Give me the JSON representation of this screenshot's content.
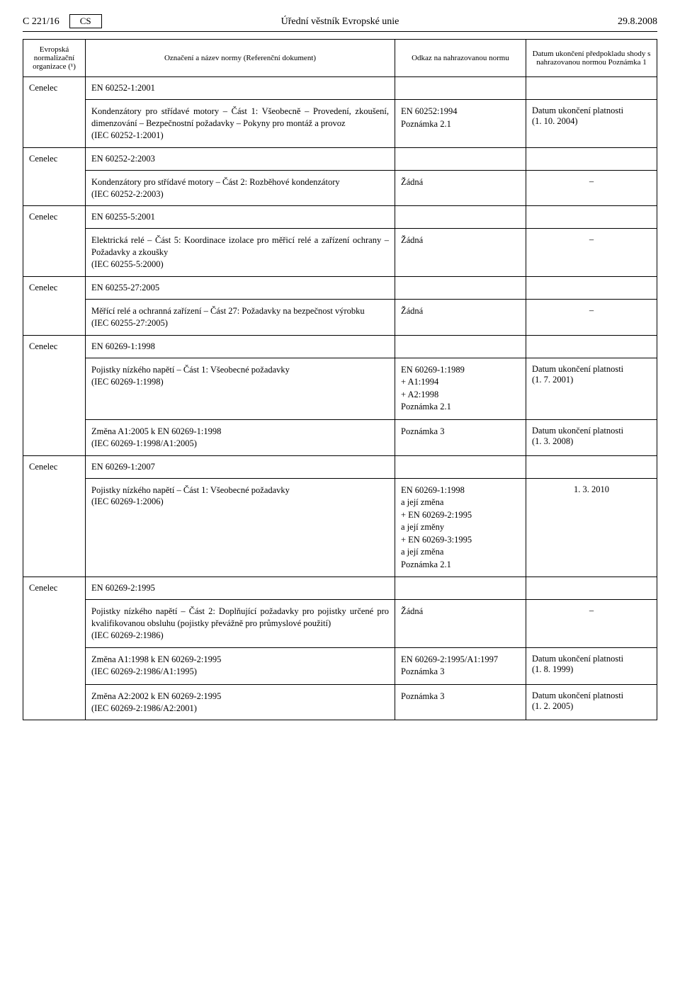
{
  "header": {
    "page_ref": "C 221/16",
    "lang_box": "CS",
    "journal": "Úřední věstník Evropské unie",
    "date": "29.8.2008"
  },
  "columns": {
    "org": "Evropská normalizační organizace (¹)",
    "title": "Označení a název normy\n(Referenční dokument)",
    "ref": "Odkaz na nahrazovanou normu",
    "cess": "Datum ukončení předpokladu shody s nahrazovanou normou\nPoznámka 1"
  },
  "labels": {
    "zadna": "Žádná",
    "platnost": "Datum ukončení platnosti",
    "pozn21": "Poznámka 2.1",
    "pozn3": "Poznámka 3",
    "dash": "–"
  },
  "rows": [
    {
      "org": "Cenelec",
      "std": "EN 60252-1:2001",
      "items": [
        {
          "desc": "Kondenzátory pro střídavé motory – Část 1: Všeobecně – Provedení, zkoušení, dimenzování – Bezpečnostní požadavky – Pokyny pro montáž a provoz",
          "iec": "(IEC 60252-1:2001)",
          "ref": [
            "EN 60252:1994",
            "Poznámka 2.1"
          ],
          "cess_label": "Datum ukončení platnosti",
          "cess_date": "(1. 10. 2004)"
        }
      ]
    },
    {
      "org": "Cenelec",
      "std": "EN 60252-2:2003",
      "items": [
        {
          "desc": "Kondenzátory pro střídavé motory – Část 2: Rozběhové kondenzátory",
          "iec": "(IEC 60252-2:2003)",
          "ref": [
            "Žádná"
          ],
          "cess_dash": true
        }
      ]
    },
    {
      "org": "Cenelec",
      "std": "EN 60255-5:2001",
      "items": [
        {
          "desc": "Elektrická relé – Část 5: Koordinace izolace pro měřicí relé a zařízení ochrany – Požadavky a zkoušky",
          "iec": "(IEC 60255-5:2000)",
          "ref": [
            "Žádná"
          ],
          "cess_dash": true
        }
      ]
    },
    {
      "org": "Cenelec",
      "std": "EN 60255-27:2005",
      "items": [
        {
          "desc": "Měřící relé a ochranná zařízení – Část 27: Požadavky na bezpečnost výrobku",
          "iec": "(IEC 60255-27:2005)",
          "ref": [
            "Žádná"
          ],
          "cess_dash": true
        }
      ]
    },
    {
      "org": "Cenelec",
      "std": "EN 60269-1:1998",
      "items": [
        {
          "desc": "Pojistky nízkého napětí – Část 1: Všeobecné požadavky",
          "iec": "(IEC 60269-1:1998)",
          "ref": [
            "EN 60269-1:1989",
            "+ A1:1994",
            "+ A2:1998",
            "Poznámka 2.1"
          ],
          "cess_label": "Datum ukončení platnosti",
          "cess_date": "(1. 7. 2001)"
        },
        {
          "desc": "Změna A1:2005 k EN 60269-1:1998",
          "iec": "(IEC 60269-1:1998/A1:2005)",
          "ref": [
            "Poznámka 3"
          ],
          "cess_label": "Datum ukončení platnosti",
          "cess_date": "(1. 3. 2008)"
        }
      ]
    },
    {
      "org": "Cenelec",
      "std": "EN 60269-1:2007",
      "items": [
        {
          "desc": "Pojistky nízkého napětí – Část 1: Všeobecné požadavky",
          "iec": "(IEC 60269-1:2006)",
          "ref": [
            "EN 60269-1:1998",
            "a její změna",
            "+ EN 60269-2:1995",
            "a její změny",
            "+ EN 60269-3:1995",
            "a její změna",
            "Poznámka 2.1"
          ],
          "cess_center_date": "1. 3. 2010"
        }
      ]
    },
    {
      "org": "Cenelec",
      "std": "EN 60269-2:1995",
      "items": [
        {
          "desc": "Pojistky nízkého napětí – Část 2: Doplňující požadavky pro pojistky určené pro kvalifikovanou obsluhu (pojistky převážně pro průmyslové použití)",
          "iec": "(IEC 60269-2:1986)",
          "ref": [
            "Žádná"
          ],
          "cess_dash": true
        },
        {
          "desc": "Změna A1:1998 k EN 60269-2:1995",
          "iec": "(IEC 60269-2:1986/A1:1995)",
          "ref": [
            "EN 60269-2:1995/A1:1997",
            "Poznámka 3"
          ],
          "cess_label": "Datum ukončení platnosti",
          "cess_date": "(1. 8. 1999)"
        },
        {
          "desc": "Změna A2:2002 k EN 60269-2:1995",
          "iec": "(IEC 60269-2:1986/A2:2001)",
          "ref": [
            "Poznámka 3"
          ],
          "cess_label": "Datum ukončení platnosti",
          "cess_date": "(1. 2. 2005)"
        }
      ]
    }
  ]
}
